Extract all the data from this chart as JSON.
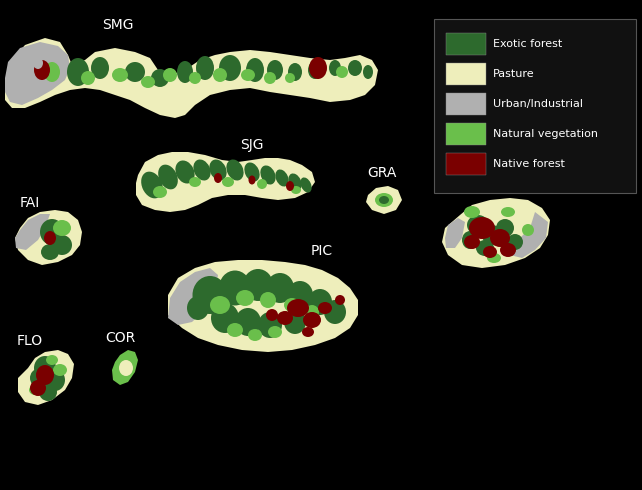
{
  "background_color": "#000000",
  "colors": {
    "exotic_forest": "#2d6a2d",
    "pasture": "#eeeebb",
    "urban": "#b0b0b0",
    "natural_veg": "#6abf4b",
    "native_forest": "#7a0000",
    "background": "#000000",
    "label_text": "#ffffff"
  },
  "legend_items": [
    {
      "label": "Exotic forest",
      "color": "#2d6a2d"
    },
    {
      "label": "Pasture",
      "color": "#eeeebb"
    },
    {
      "label": "Urban/Industrial",
      "color": "#b0b0b0"
    },
    {
      "label": "Natural vegetation",
      "color": "#6abf4b"
    },
    {
      "label": "Native forest",
      "color": "#7a0000"
    }
  ],
  "figsize": [
    6.42,
    4.9
  ],
  "dpi": 100,
  "font_size_labels": 10
}
